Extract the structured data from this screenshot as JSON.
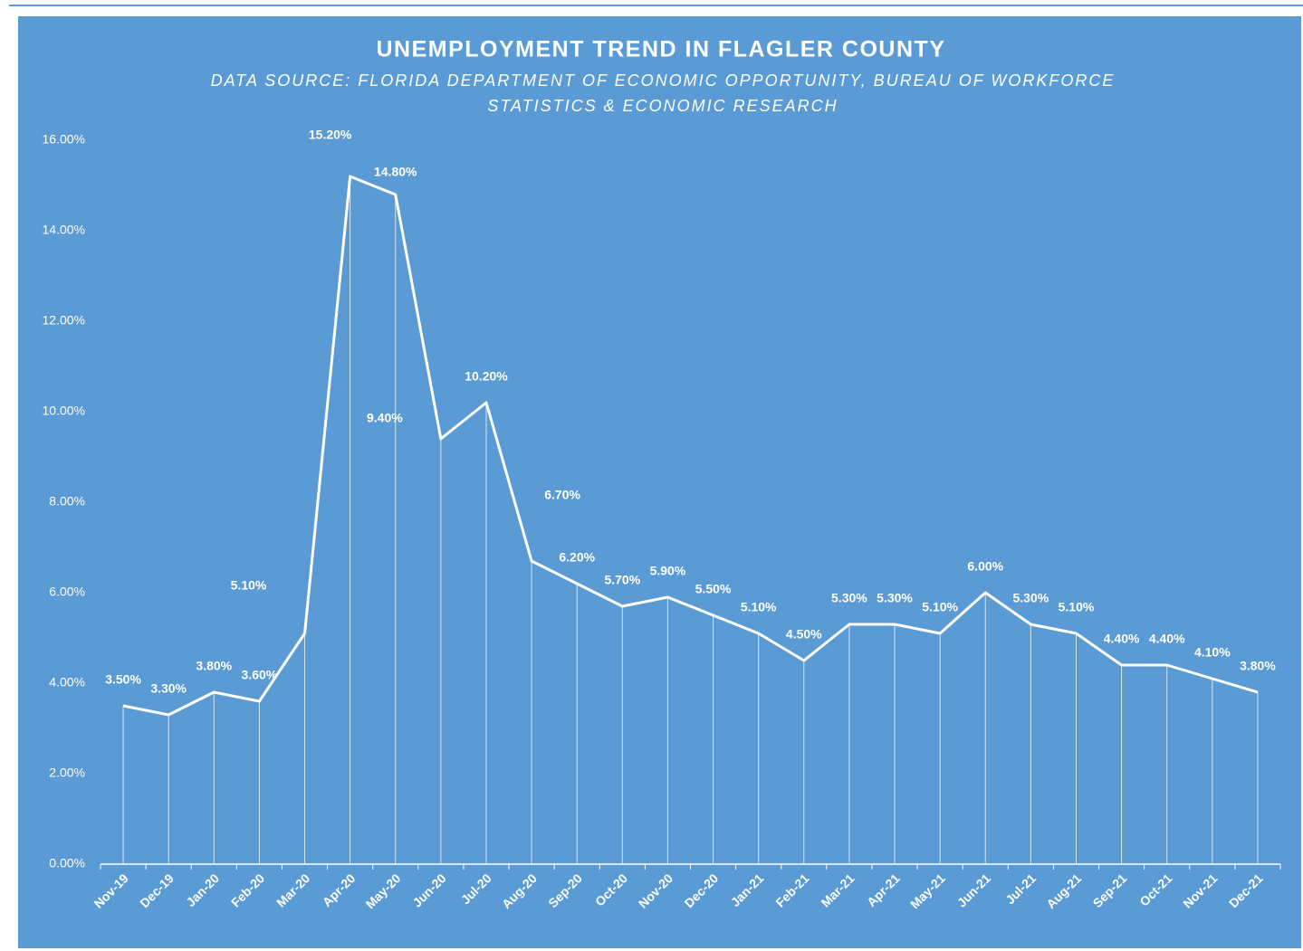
{
  "chart_data": {
    "type": "line",
    "title": "UNEMPLOYMENT TREND IN FLAGLER COUNTY",
    "subtitle": [
      "DATA SOURCE:  FLORIDA DEPARTMENT OF ECONOMIC OPPORTUNITY, BUREAU  OF WORKFORCE",
      "STATISTICS & ECONOMIC RESEARCH"
    ],
    "categories": [
      "Nov-19",
      "Dec-19",
      "Jan-20",
      "Feb-20",
      "Mar-20",
      "Apr-20",
      "May-20",
      "Jun-20",
      "Jul-20",
      "Aug-20",
      "Sep-20",
      "Oct-20",
      "Nov-20",
      "Dec-20",
      "Jan-21",
      "Feb-21",
      "Mar-21",
      "Apr-21",
      "May-21",
      "Jun-21",
      "Jul-21",
      "Aug-21",
      "Sep-21",
      "Oct-21",
      "Nov-21",
      "Dec-21"
    ],
    "values": [
      3.5,
      3.3,
      3.8,
      3.6,
      5.1,
      15.2,
      14.8,
      9.4,
      10.2,
      6.7,
      6.2,
      5.7,
      5.9,
      5.5,
      5.1,
      4.5,
      5.3,
      5.3,
      5.1,
      6.0,
      5.3,
      5.1,
      4.4,
      4.4,
      4.1,
      3.8
    ],
    "value_labels": [
      "3.50%",
      "3.30%",
      "3.80%",
      "3.60%",
      "5.10%",
      "15.20%",
      "14.80%",
      "9.40%",
      "10.20%",
      "6.70%",
      "6.20%",
      "5.70%",
      "5.90%",
      "5.50%",
      "5.10%",
      "4.50%",
      "5.30%",
      "5.30%",
      "5.10%",
      "6.00%",
      "5.30%",
      "5.10%",
      "4.40%",
      "4.40%",
      "4.10%",
      "3.80%"
    ],
    "color": "#ffffff",
    "background": "#5b9bd5",
    "ylim": [
      0,
      16
    ],
    "yticks": [
      {
        "value": 0,
        "label": "0.00%"
      },
      {
        "value": 2,
        "label": "2.00%"
      },
      {
        "value": 4,
        "label": "4.00%"
      },
      {
        "value": 6,
        "label": "6.00%"
      },
      {
        "value": 8,
        "label": "8.00%"
      },
      {
        "value": 10,
        "label": "10.00%"
      },
      {
        "value": 12,
        "label": "12.00%"
      },
      {
        "value": 14,
        "label": "14.00%"
      },
      {
        "value": 16,
        "label": "16.00%"
      }
    ],
    "grid": false,
    "drop_lines": true
  }
}
